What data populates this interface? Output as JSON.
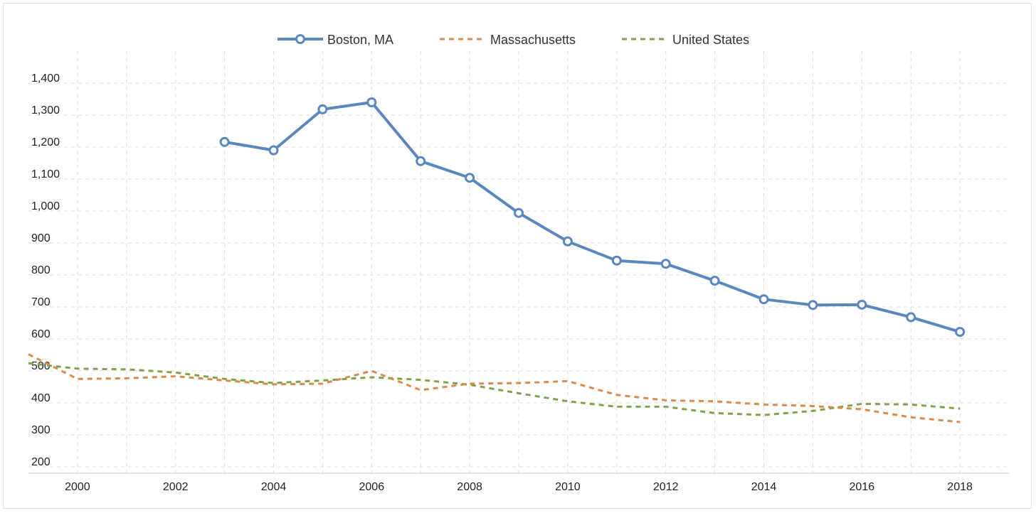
{
  "colors": {
    "boston": "#5b87bf",
    "massachusetts": "#d98b4c",
    "united_states": "#7fa24c",
    "grid": "#dddddd"
  },
  "legend": [
    {
      "label": "Boston, MA",
      "style": "solid-with-markers",
      "color": "#5b87bf"
    },
    {
      "label": "Massachusetts",
      "style": "dashed",
      "color": "#d98b4c"
    },
    {
      "label": "United States",
      "style": "dashed",
      "color": "#7fa24c"
    }
  ],
  "chart_data": {
    "type": "line",
    "title": "",
    "xlabel": "",
    "ylabel": "",
    "xlim": [
      1999,
      2019
    ],
    "ylim": [
      180,
      1500
    ],
    "x_ticks": [
      2000,
      2002,
      2004,
      2006,
      2008,
      2010,
      2012,
      2014,
      2016,
      2018
    ],
    "x_tick_labels": [
      "2000",
      "2002",
      "2004",
      "2006",
      "2008",
      "2010",
      "2012",
      "2014",
      "2016",
      "2018"
    ],
    "y_ticks": [
      200,
      300,
      400,
      500,
      600,
      700,
      800,
      900,
      1000,
      1100,
      1200,
      1300,
      1400
    ],
    "y_tick_labels": [
      "200",
      "300",
      "400",
      "500",
      "600",
      "700",
      "800",
      "900",
      "1,000",
      "1,100",
      "1,200",
      "1,300",
      "1,400"
    ],
    "grid": true,
    "legend_position": "top-center",
    "series": [
      {
        "name": "Boston, MA",
        "style": "solid",
        "markers": true,
        "x": [
          2003,
          2004,
          2005,
          2006,
          2007,
          2008,
          2009,
          2010,
          2011,
          2012,
          2013,
          2014,
          2015,
          2016,
          2017,
          2018
        ],
        "values": [
          1216,
          1190,
          1318,
          1340,
          1156,
          1104,
          994,
          905,
          845,
          835,
          782,
          724,
          706,
          707,
          668,
          622
        ]
      },
      {
        "name": "Massachusetts",
        "style": "dashed",
        "markers": false,
        "x": [
          1999,
          2000,
          2001,
          2002,
          2003,
          2004,
          2005,
          2006,
          2007,
          2008,
          2009,
          2010,
          2011,
          2012,
          2013,
          2014,
          2015,
          2016,
          2017,
          2018
        ],
        "values": [
          552,
          475,
          477,
          483,
          470,
          458,
          460,
          500,
          440,
          460,
          462,
          468,
          425,
          408,
          405,
          395,
          390,
          380,
          355,
          340
        ]
      },
      {
        "name": "United States",
        "style": "dashed",
        "markers": false,
        "x": [
          1999,
          2000,
          2001,
          2002,
          2003,
          2004,
          2005,
          2006,
          2007,
          2008,
          2009,
          2010,
          2011,
          2012,
          2013,
          2014,
          2015,
          2016,
          2017,
          2018
        ],
        "values": [
          524,
          507,
          505,
          495,
          475,
          462,
          470,
          480,
          472,
          457,
          430,
          405,
          388,
          388,
          368,
          362,
          375,
          397,
          395,
          382
        ]
      }
    ]
  }
}
